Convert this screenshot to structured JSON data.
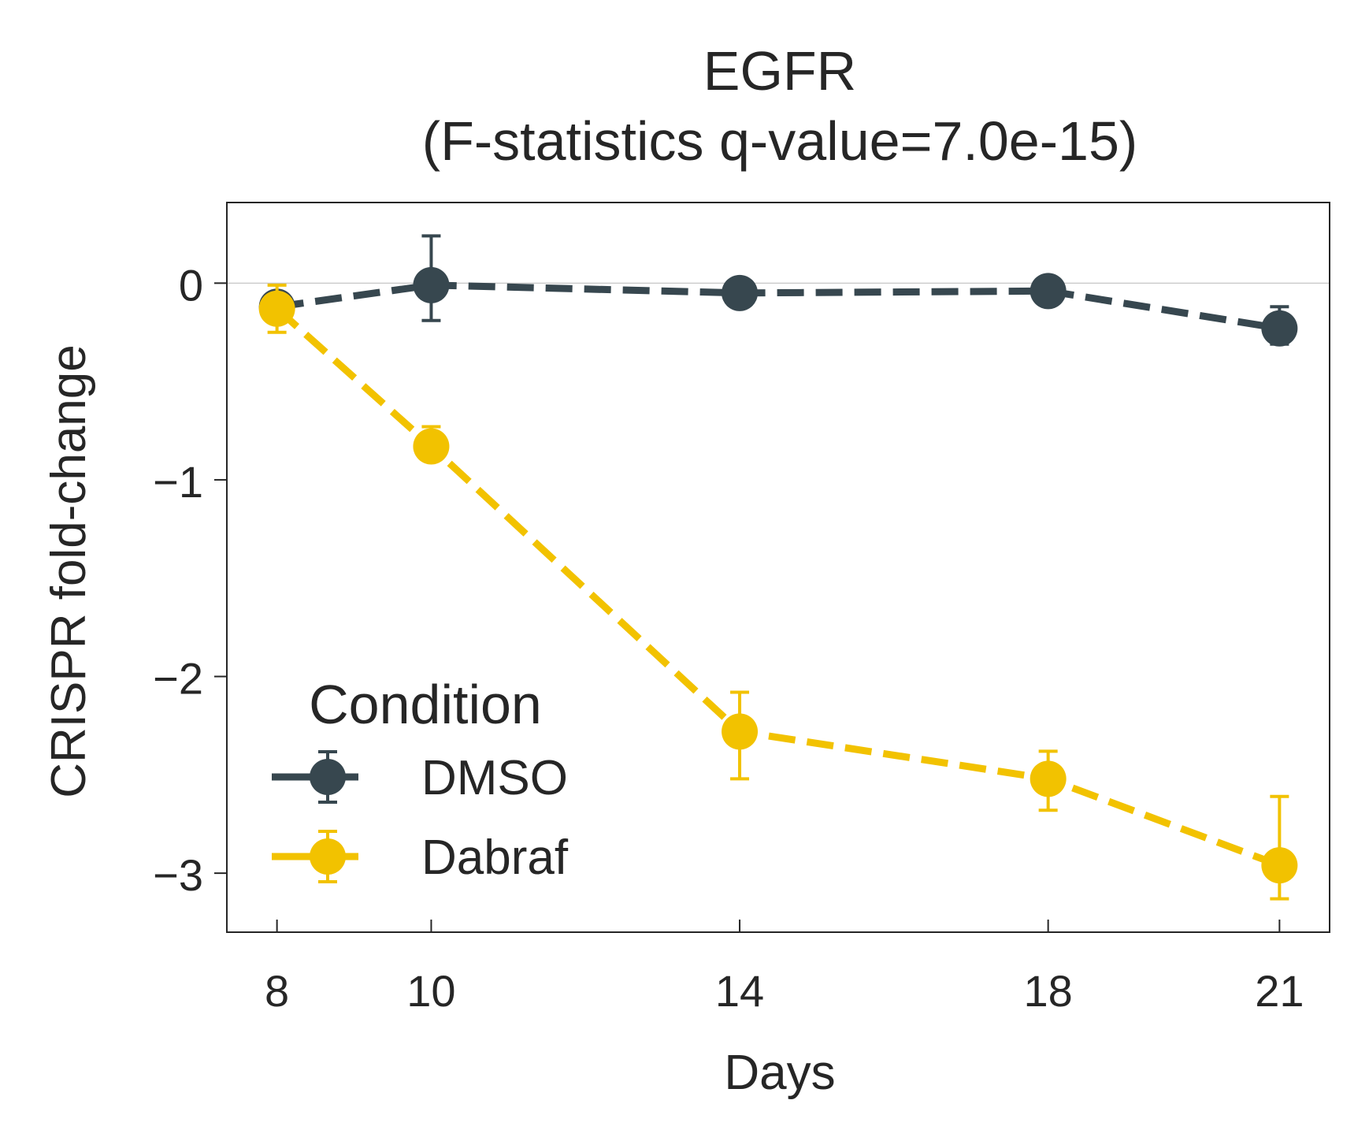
{
  "chart_data": {
    "type": "line",
    "title": "EGFR",
    "subtitle": "(F-statistics q-value=7.0e-15)",
    "xlabel": "Days",
    "ylabel": "CRISPR fold-change",
    "x": [
      8,
      10,
      14,
      18,
      21
    ],
    "xticks": [
      "8",
      "10",
      "14",
      "18",
      "21"
    ],
    "yticks": [
      0,
      -1,
      -2,
      -3
    ],
    "ytick_labels": [
      "0",
      "−1",
      "−2",
      "−3"
    ],
    "xlim": [
      7.35,
      21.65
    ],
    "ylim": [
      -3.3,
      0.41
    ],
    "grid": false,
    "reference_line_y": 0,
    "legend": {
      "title": "Condition",
      "position": "lower-left"
    },
    "series": [
      {
        "name": "DMSO",
        "color": "#37474f",
        "values": [
          -0.12,
          -0.01,
          -0.05,
          -0.04,
          -0.23
        ],
        "err_low": [
          -0.12,
          -0.19,
          -0.05,
          -0.04,
          -0.31
        ],
        "err_high": [
          -0.12,
          0.24,
          -0.05,
          -0.04,
          -0.12
        ]
      },
      {
        "name": "Dabraf",
        "color": "#f2c200",
        "values": [
          -0.13,
          -0.83,
          -2.28,
          -2.52,
          -2.96
        ],
        "err_low": [
          -0.25,
          -0.86,
          -2.52,
          -2.68,
          -3.13
        ],
        "err_high": [
          -0.01,
          -0.73,
          -2.08,
          -2.38,
          -2.61
        ]
      }
    ]
  }
}
